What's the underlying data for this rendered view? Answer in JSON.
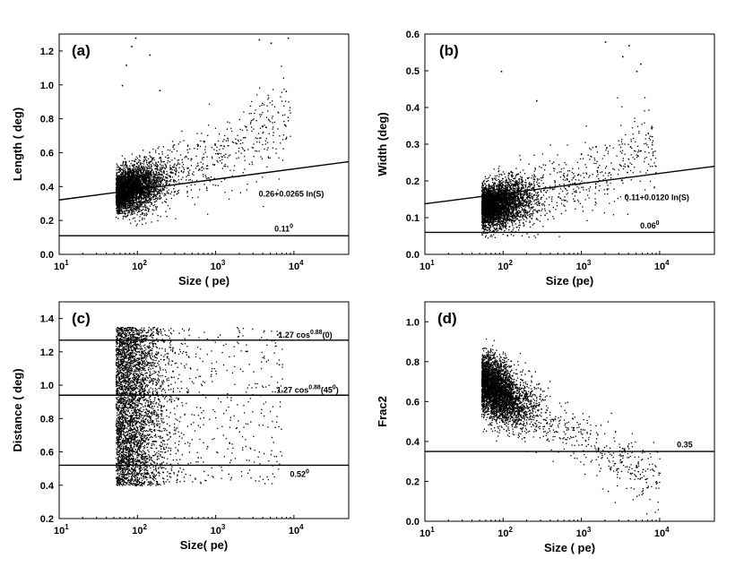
{
  "chart_data": [
    {
      "id": "a",
      "type": "scatter",
      "panel_label": "(a)",
      "xlabel": "Size ( pe)",
      "ylabel": "Length ( deg)",
      "xscale": "log10",
      "xlim": [
        1,
        4.7
      ],
      "ylim": [
        0,
        1.3
      ],
      "x_ticks": [
        1,
        2,
        3,
        4
      ],
      "x_tick_labels": [
        [
          "10",
          "1"
        ],
        [
          "10",
          "2"
        ],
        [
          "10",
          "3"
        ],
        [
          "10",
          "4"
        ]
      ],
      "y_ticks": [
        0.0,
        0.2,
        0.4,
        0.6,
        0.8,
        1.0,
        1.2
      ],
      "y_tick_labels": [
        "0.0",
        "0.2",
        "0.4",
        "0.6",
        "0.8",
        "1.0",
        "1.2"
      ],
      "lines": [
        {
          "kind": "log_fit",
          "a": 0.26,
          "b": 0.0265,
          "label": "0.26+0.0265 ln(S)",
          "label_at": [
            3.55,
            0.34
          ]
        },
        {
          "kind": "hline",
          "y": 0.11,
          "label": "0.11",
          "label_sup": "0",
          "label_at": [
            3.75,
            0.135
          ]
        }
      ],
      "points": {
        "n": 4200,
        "x_min": 1.72,
        "x_tail": 3.95,
        "x_mode": 2.1,
        "x_spread": 0.28,
        "y_center": [
          0.2,
          0.31
        ],
        "y_spread": 0.058,
        "y_min": 0.13,
        "y_max": 1.3,
        "outliers_x": [
          1.8,
          1.85,
          1.92,
          1.97,
          2.15,
          2.28,
          3.55,
          3.7,
          3.92
        ],
        "outliers_y": [
          1.0,
          1.12,
          1.23,
          1.28,
          1.18,
          0.97,
          1.27,
          1.25,
          1.28
        ]
      }
    },
    {
      "id": "b",
      "type": "scatter",
      "panel_label": "(b)",
      "xlabel": "Size (pe)",
      "ylabel": "Width (deg)",
      "xscale": "log10",
      "xlim": [
        1,
        4.7
      ],
      "ylim": [
        0,
        0.6
      ],
      "x_ticks": [
        1,
        2,
        3,
        4
      ],
      "x_tick_labels": [
        [
          "10",
          "1"
        ],
        [
          "10",
          "2"
        ],
        [
          "10",
          "3"
        ],
        [
          "10",
          "4"
        ]
      ],
      "y_ticks": [
        0.0,
        0.1,
        0.2,
        0.3,
        0.4,
        0.5,
        0.6
      ],
      "y_tick_labels": [
        "0.0",
        "0.1",
        "0.2",
        "0.3",
        "0.4",
        "0.5",
        "0.6"
      ],
      "lines": [
        {
          "kind": "log_fit",
          "a": 0.11,
          "b": 0.012,
          "label": "0.11+0.0120 ln(S)",
          "label_at": [
            3.55,
            0.148
          ]
        },
        {
          "kind": "hline",
          "y": 0.06,
          "label": "0.06",
          "label_sup": "0",
          "label_at": [
            3.75,
            0.071
          ]
        }
      ],
      "points": {
        "n": 4200,
        "x_min": 1.72,
        "x_tail": 3.95,
        "x_mode": 2.1,
        "x_spread": 0.28,
        "y_center": [
          0.065,
          0.115
        ],
        "y_spread": 0.028,
        "y_min": 0.045,
        "y_max": 0.6,
        "outliers_x": [
          1.97,
          2.42,
          3.3,
          3.52,
          3.6,
          3.7,
          3.75
        ],
        "outliers_y": [
          0.5,
          0.42,
          0.58,
          0.54,
          0.57,
          0.5,
          0.52
        ]
      }
    },
    {
      "id": "c",
      "type": "scatter",
      "panel_label": "(c)",
      "xlabel": "Size( pe)",
      "ylabel": "Distance ( deg)",
      "xscale": "log10",
      "xlim": [
        1,
        4.7
      ],
      "ylim": [
        0.2,
        1.5
      ],
      "x_ticks": [
        1,
        2,
        3,
        4
      ],
      "x_tick_labels": [
        [
          "10",
          "1"
        ],
        [
          "10",
          "2"
        ],
        [
          "10",
          "3"
        ],
        [
          "10",
          "4"
        ]
      ],
      "y_ticks": [
        0.2,
        0.4,
        0.6,
        0.8,
        1.0,
        1.2,
        1.4
      ],
      "y_tick_labels": [
        "0.2",
        "0.4",
        "0.6",
        "0.8",
        "1.0",
        "1.2",
        "1.4"
      ],
      "lines": [
        {
          "kind": "hline",
          "y": 1.27,
          "label": "1.27 cos",
          "label_sup": "0.88",
          "label_tail": "(0)",
          "label_at": [
            3.8,
            1.285
          ]
        },
        {
          "kind": "hline",
          "y": 0.94,
          "label": "1.27 cos",
          "label_sup": "0.88",
          "label_tail": "(45",
          "label_sup2": "0",
          "label_tail2": ")",
          "label_at": [
            3.78,
            0.955
          ]
        },
        {
          "kind": "hline",
          "y": 0.52,
          "label": "0.52",
          "label_sup": "0",
          "label_at": [
            3.95,
            0.45
          ]
        }
      ],
      "points": {
        "n": 4200,
        "x_min": 1.72,
        "x_tail": 3.85,
        "x_mode": 2.1,
        "x_spread": 0.3,
        "y_uniform": [
          0.4,
          1.35
        ]
      }
    },
    {
      "id": "d",
      "type": "scatter",
      "panel_label": "(d)",
      "xlabel": "Size ( pe)",
      "ylabel": "Frac2",
      "xscale": "log10",
      "xlim": [
        1,
        4.7
      ],
      "ylim": [
        0,
        1.1
      ],
      "x_ticks": [
        1,
        2,
        3,
        4
      ],
      "x_tick_labels": [
        [
          "10",
          "1"
        ],
        [
          "10",
          "2"
        ],
        [
          "10",
          "3"
        ],
        [
          "10",
          "4"
        ]
      ],
      "y_ticks": [
        0.0,
        0.2,
        0.4,
        0.6,
        0.8,
        1.0
      ],
      "y_tick_labels": [
        "0.0",
        "0.2",
        "0.4",
        "0.6",
        "0.8",
        "1.0"
      ],
      "lines": [
        {
          "kind": "hline",
          "y": 0.35,
          "label": "0.35",
          "label_at": [
            4.22,
            0.37
          ]
        }
      ],
      "points": {
        "n": 4200,
        "x_min": 1.72,
        "x_tail": 4.0,
        "x_mode": 2.1,
        "x_spread": 0.28,
        "y_linear": [
          0.62,
          -0.22
        ],
        "y_spread": 0.075,
        "y_min": 0.04,
        "y_max": 0.95
      }
    }
  ]
}
